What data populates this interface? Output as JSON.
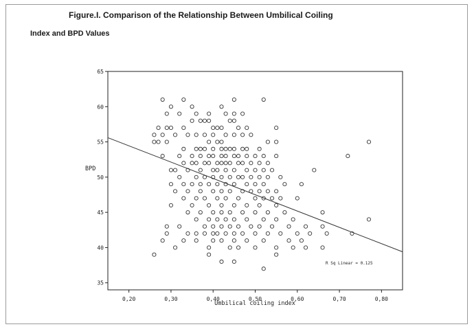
{
  "page": {
    "title_line1": "Figure.I. Comparison of the Relationship Between Umbilical Coiling",
    "title_line2": "Index and BPD Values"
  },
  "chart_data": {
    "type": "scatter",
    "title": "Figure.I. Comparison of the Relationship Between Umbilical Coiling Index and BPD Values",
    "xlabel": "Umbilical coiling index",
    "ylabel": "BPD",
    "xlim": [
      0.15,
      0.85
    ],
    "ylim": [
      34,
      65
    ],
    "xticks": [
      0.2,
      0.3,
      0.4,
      0.5,
      0.6,
      0.7,
      0.8
    ],
    "xtick_labels": [
      "0,20",
      "0,30",
      "0,40",
      "0,50",
      "0,60",
      "0,70",
      "0,80"
    ],
    "yticks": [
      35,
      40,
      45,
      50,
      55,
      60,
      65
    ],
    "ytick_labels": [
      "35",
      "40",
      "45",
      "50",
      "55",
      "60",
      "65"
    ],
    "grid": false,
    "marker": "open-circle",
    "fit_line": {
      "x": [
        0.15,
        0.85
      ],
      "y": [
        55.6,
        39.4
      ]
    },
    "annotation": "R Sq Linear = 0.125",
    "points": [
      [
        0.28,
        61
      ],
      [
        0.3,
        60
      ],
      [
        0.33,
        61
      ],
      [
        0.35,
        60
      ],
      [
        0.42,
        60
      ],
      [
        0.45,
        61
      ],
      [
        0.52,
        61
      ],
      [
        0.29,
        59
      ],
      [
        0.32,
        59
      ],
      [
        0.36,
        59
      ],
      [
        0.39,
        59
      ],
      [
        0.43,
        59
      ],
      [
        0.45,
        59
      ],
      [
        0.47,
        59
      ],
      [
        0.27,
        57
      ],
      [
        0.29,
        57
      ],
      [
        0.3,
        57
      ],
      [
        0.33,
        57
      ],
      [
        0.35,
        58
      ],
      [
        0.37,
        58
      ],
      [
        0.38,
        58
      ],
      [
        0.39,
        58
      ],
      [
        0.4,
        57
      ],
      [
        0.41,
        57
      ],
      [
        0.42,
        57
      ],
      [
        0.44,
        58
      ],
      [
        0.45,
        58
      ],
      [
        0.46,
        57
      ],
      [
        0.48,
        57
      ],
      [
        0.55,
        57
      ],
      [
        0.26,
        56
      ],
      [
        0.27,
        55
      ],
      [
        0.28,
        56
      ],
      [
        0.31,
        56
      ],
      [
        0.34,
        56
      ],
      [
        0.36,
        56
      ],
      [
        0.38,
        56
      ],
      [
        0.39,
        55
      ],
      [
        0.4,
        56
      ],
      [
        0.41,
        55
      ],
      [
        0.42,
        55
      ],
      [
        0.43,
        56
      ],
      [
        0.45,
        56
      ],
      [
        0.47,
        56
      ],
      [
        0.49,
        56
      ],
      [
        0.77,
        55
      ],
      [
        0.26,
        55
      ],
      [
        0.29,
        55
      ],
      [
        0.33,
        54
      ],
      [
        0.36,
        54
      ],
      [
        0.37,
        54
      ],
      [
        0.38,
        54
      ],
      [
        0.4,
        54
      ],
      [
        0.42,
        54
      ],
      [
        0.43,
        54
      ],
      [
        0.44,
        54
      ],
      [
        0.45,
        54
      ],
      [
        0.47,
        54
      ],
      [
        0.48,
        54
      ],
      [
        0.51,
        54
      ],
      [
        0.53,
        55
      ],
      [
        0.55,
        55
      ],
      [
        0.28,
        53
      ],
      [
        0.32,
        53
      ],
      [
        0.35,
        53
      ],
      [
        0.37,
        53
      ],
      [
        0.39,
        53
      ],
      [
        0.4,
        53
      ],
      [
        0.42,
        53
      ],
      [
        0.43,
        53
      ],
      [
        0.45,
        53
      ],
      [
        0.46,
        53
      ],
      [
        0.48,
        53
      ],
      [
        0.5,
        53
      ],
      [
        0.52,
        53
      ],
      [
        0.55,
        53
      ],
      [
        0.72,
        53
      ],
      [
        0.33,
        52
      ],
      [
        0.35,
        52
      ],
      [
        0.36,
        52
      ],
      [
        0.38,
        52
      ],
      [
        0.39,
        52
      ],
      [
        0.41,
        52
      ],
      [
        0.42,
        52
      ],
      [
        0.43,
        52
      ],
      [
        0.44,
        52
      ],
      [
        0.46,
        52
      ],
      [
        0.47,
        52
      ],
      [
        0.49,
        52
      ],
      [
        0.51,
        52
      ],
      [
        0.53,
        52
      ],
      [
        0.3,
        51
      ],
      [
        0.31,
        51
      ],
      [
        0.34,
        51
      ],
      [
        0.37,
        51
      ],
      [
        0.4,
        51
      ],
      [
        0.41,
        51
      ],
      [
        0.43,
        51
      ],
      [
        0.45,
        51
      ],
      [
        0.48,
        51
      ],
      [
        0.5,
        51
      ],
      [
        0.52,
        51
      ],
      [
        0.54,
        51
      ],
      [
        0.64,
        51
      ],
      [
        0.32,
        50
      ],
      [
        0.36,
        50
      ],
      [
        0.38,
        50
      ],
      [
        0.4,
        50
      ],
      [
        0.42,
        50
      ],
      [
        0.44,
        50
      ],
      [
        0.46,
        50
      ],
      [
        0.47,
        50
      ],
      [
        0.49,
        50
      ],
      [
        0.51,
        50
      ],
      [
        0.53,
        50
      ],
      [
        0.56,
        50
      ],
      [
        0.3,
        49
      ],
      [
        0.33,
        49
      ],
      [
        0.35,
        49
      ],
      [
        0.37,
        49
      ],
      [
        0.39,
        49
      ],
      [
        0.41,
        49
      ],
      [
        0.43,
        49
      ],
      [
        0.45,
        49
      ],
      [
        0.48,
        49
      ],
      [
        0.5,
        49
      ],
      [
        0.52,
        49
      ],
      [
        0.57,
        49
      ],
      [
        0.61,
        49
      ],
      [
        0.31,
        48
      ],
      [
        0.34,
        48
      ],
      [
        0.37,
        48
      ],
      [
        0.4,
        48
      ],
      [
        0.42,
        48
      ],
      [
        0.44,
        48
      ],
      [
        0.47,
        48
      ],
      [
        0.49,
        48
      ],
      [
        0.51,
        48
      ],
      [
        0.53,
        48
      ],
      [
        0.55,
        48
      ],
      [
        0.33,
        47
      ],
      [
        0.36,
        47
      ],
      [
        0.38,
        47
      ],
      [
        0.41,
        47
      ],
      [
        0.43,
        47
      ],
      [
        0.46,
        47
      ],
      [
        0.5,
        47
      ],
      [
        0.52,
        47
      ],
      [
        0.54,
        47
      ],
      [
        0.56,
        47
      ],
      [
        0.6,
        47
      ],
      [
        0.3,
        46
      ],
      [
        0.35,
        46
      ],
      [
        0.39,
        46
      ],
      [
        0.42,
        46
      ],
      [
        0.45,
        46
      ],
      [
        0.48,
        46
      ],
      [
        0.51,
        46
      ],
      [
        0.55,
        46
      ],
      [
        0.34,
        45
      ],
      [
        0.37,
        45
      ],
      [
        0.4,
        45
      ],
      [
        0.42,
        45
      ],
      [
        0.44,
        45
      ],
      [
        0.47,
        45
      ],
      [
        0.5,
        45
      ],
      [
        0.53,
        45
      ],
      [
        0.57,
        45
      ],
      [
        0.66,
        45
      ],
      [
        0.36,
        44
      ],
      [
        0.39,
        44
      ],
      [
        0.41,
        44
      ],
      [
        0.43,
        44
      ],
      [
        0.45,
        44
      ],
      [
        0.48,
        44
      ],
      [
        0.52,
        44
      ],
      [
        0.55,
        44
      ],
      [
        0.59,
        44
      ],
      [
        0.77,
        44
      ],
      [
        0.29,
        43
      ],
      [
        0.32,
        43
      ],
      [
        0.38,
        43
      ],
      [
        0.4,
        43
      ],
      [
        0.42,
        43
      ],
      [
        0.44,
        43
      ],
      [
        0.46,
        43
      ],
      [
        0.49,
        43
      ],
      [
        0.51,
        43
      ],
      [
        0.54,
        43
      ],
      [
        0.58,
        43
      ],
      [
        0.62,
        43
      ],
      [
        0.66,
        43
      ],
      [
        0.29,
        42
      ],
      [
        0.34,
        42
      ],
      [
        0.36,
        42
      ],
      [
        0.38,
        42
      ],
      [
        0.4,
        42
      ],
      [
        0.41,
        42
      ],
      [
        0.43,
        42
      ],
      [
        0.45,
        42
      ],
      [
        0.47,
        42
      ],
      [
        0.5,
        42
      ],
      [
        0.53,
        42
      ],
      [
        0.56,
        42
      ],
      [
        0.6,
        42
      ],
      [
        0.63,
        42
      ],
      [
        0.67,
        42
      ],
      [
        0.73,
        42
      ],
      [
        0.28,
        41
      ],
      [
        0.33,
        41
      ],
      [
        0.36,
        41
      ],
      [
        0.4,
        41
      ],
      [
        0.42,
        41
      ],
      [
        0.45,
        41
      ],
      [
        0.48,
        41
      ],
      [
        0.52,
        41
      ],
      [
        0.58,
        41
      ],
      [
        0.61,
        41
      ],
      [
        0.31,
        40
      ],
      [
        0.39,
        40
      ],
      [
        0.44,
        40
      ],
      [
        0.46,
        40
      ],
      [
        0.5,
        40
      ],
      [
        0.55,
        40
      ],
      [
        0.59,
        40
      ],
      [
        0.62,
        40
      ],
      [
        0.66,
        40
      ],
      [
        0.26,
        39
      ],
      [
        0.39,
        39
      ],
      [
        0.55,
        39
      ],
      [
        0.42,
        38
      ],
      [
        0.45,
        38
      ],
      [
        0.52,
        37
      ]
    ]
  }
}
